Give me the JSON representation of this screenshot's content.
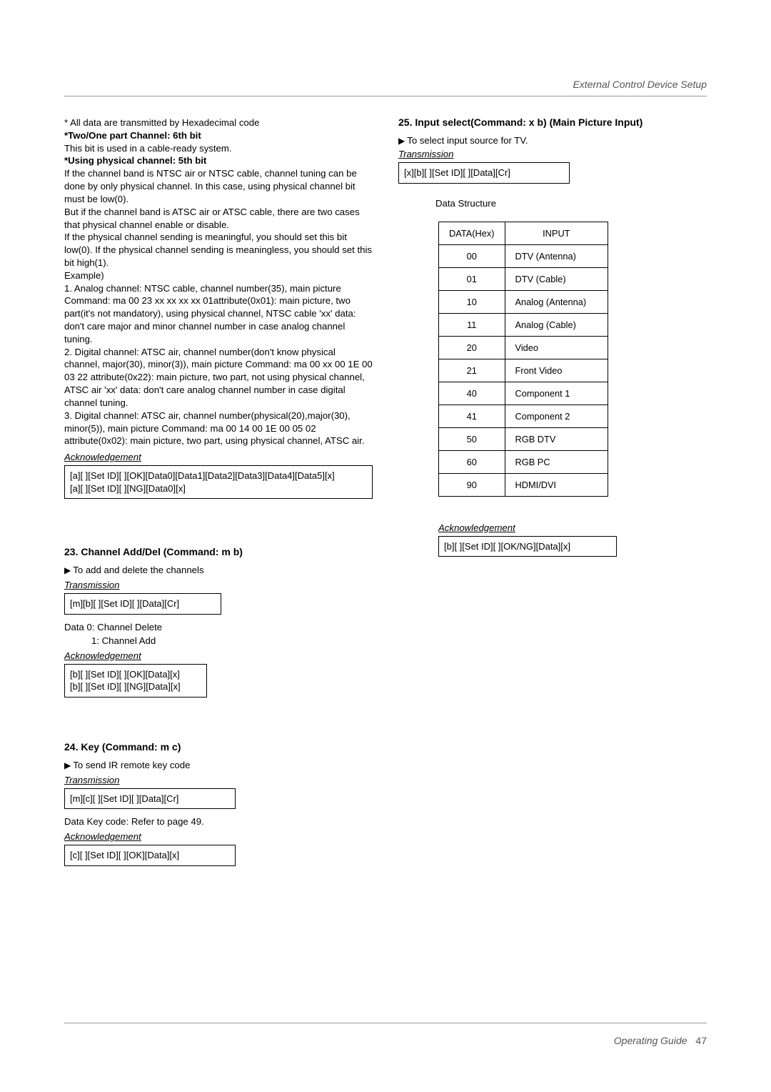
{
  "header": {
    "right": "External Control Device Setup"
  },
  "left": {
    "intro": [
      "* All data are transmitted by Hexadecimal code",
      "*Two/One part Channel: 6th bit",
      "This bit is used in a cable-ready system.",
      "*Using physical channel: 5th bit",
      "If the channel band is NTSC air or NTSC cable, channel tuning can be done by only physical channel. In this case, using physical channel bit must be low(0).",
      "But if the channel band is ATSC air or ATSC cable, there are two cases that physical channel enable or disable.",
      "If the physical channel sending is meaningful, you should set this bit low(0). If the physical channel sending is meaningless, you should set this bit high(1).",
      "Example)",
      "1. Analog channel: NTSC cable, channel number(35), main picture Command: ma 00 23 xx xx xx xx 01attribute(0x01): main picture, two part(it's not mandatory), using physical channel, NTSC cable 'xx' data: don't care major and minor channel number in case analog channel tuning.",
      "2. Digital channel: ATSC air, channel number(don't know physical channel, major(30), minor(3)), main picture Command: ma 00 xx 00 1E 00 03 22 attribute(0x22): main picture, two part, not using physical channel, ATSC air 'xx' data: don't care analog channel number in case digital channel tuning.",
      "3. Digital channel: ATSC air, channel number(physical(20),major(30), minor(5)), main picture Command: ma 00 14 00 1E 00 05 02 attribute(0x02): main picture, two part, using physical channel, ATSC air."
    ],
    "ack1_label": "Acknowledgement",
    "ack1_box_l1": "[a][  ][Set ID][  ][OK][Data0][Data1][Data2][Data3][Data4][Data5][x]",
    "ack1_box_l2": "[a][  ][Set ID][  ][NG][Data0][x]",
    "s23_title": "23. Channel Add/Del (Command: m b)",
    "s23_desc": "To add and delete the channels",
    "trans_label": "Transmission",
    "s23_trans_box": "[m][b][  ][Set ID][  ][Data][Cr]",
    "s23_data1": "Data  0: Channel Delete",
    "s23_data2": "1: Channel Add",
    "ack_label": "Acknowledgement",
    "s23_ack_l1": "[b][  ][Set ID][  ][OK][Data][x]",
    "s23_ack_l2": "[b][  ][Set ID][  ][NG][Data][x]",
    "s24_title": "24. Key (Command: m c)",
    "s24_desc": "To send IR remote key code",
    "s24_trans_box": "[m][c][  ][Set ID][  ][Data][Cr]",
    "s24_data": "Data   Key code: Refer to page 49.",
    "s24_ack_box": "[c][  ][Set ID][  ][OK][Data][x]"
  },
  "right": {
    "s25_title": "25. Input select(Command: x b) (Main Picture Input)",
    "s25_desc": "To select input source for TV.",
    "trans_label": "Transmission",
    "s25_trans_box": "[x][b][ ][Set ID][ ][Data][Cr]",
    "data_structure": "Data Structure",
    "table_headers": {
      "hex": "DATA(Hex)",
      "input": "INPUT"
    },
    "table_rows": [
      {
        "hex": "00",
        "input": "DTV (Antenna)"
      },
      {
        "hex": "01",
        "input": "DTV (Cable)"
      },
      {
        "hex": "10",
        "input": "Analog (Antenna)"
      },
      {
        "hex": "11",
        "input": "Analog (Cable)"
      },
      {
        "hex": "20",
        "input": "Video"
      },
      {
        "hex": "21",
        "input": "Front Video"
      },
      {
        "hex": "40",
        "input": "Component 1"
      },
      {
        "hex": "41",
        "input": "Component 2"
      },
      {
        "hex": "50",
        "input": "RGB DTV"
      },
      {
        "hex": "60",
        "input": "RGB PC"
      },
      {
        "hex": "90",
        "input": "HDMI/DVI"
      }
    ],
    "ack_label": "Acknowledgement",
    "s25_ack_box": "[b][  ][Set ID][  ][OK/NG][Data][x]"
  },
  "footer": {
    "text": "Operating Guide",
    "page": "47"
  }
}
